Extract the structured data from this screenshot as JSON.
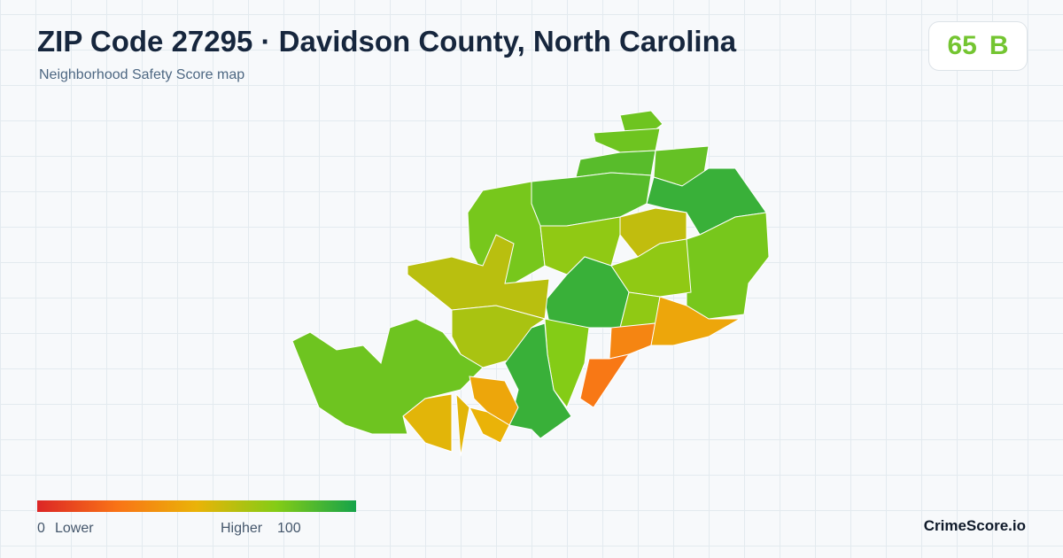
{
  "header": {
    "title": "ZIP Code 27295 · Davidson County, North Carolina",
    "subtitle": "Neighborhood Safety Score map",
    "score": 65,
    "grade": "B"
  },
  "legend": {
    "min": 0,
    "low_label": "Lower",
    "high_label": "Higher",
    "max": 100
  },
  "footer": {
    "brand": "CrimeScore.io"
  },
  "regions": [
    {
      "score": 80
    },
    {
      "score": 80
    },
    {
      "score": 85
    },
    {
      "score": 82
    },
    {
      "score": 92
    },
    {
      "score": 60
    },
    {
      "score": 78
    },
    {
      "score": 72
    },
    {
      "score": 85
    },
    {
      "score": 78
    },
    {
      "score": 72
    },
    {
      "score": 92
    },
    {
      "score": 62
    },
    {
      "score": 66
    },
    {
      "score": 75
    },
    {
      "score": 92
    },
    {
      "score": 72
    },
    {
      "score": 32
    },
    {
      "score": 27
    },
    {
      "score": 45
    },
    {
      "score": 80
    },
    {
      "score": 45
    },
    {
      "score": 52
    },
    {
      "score": 52
    },
    {
      "score": 50
    }
  ]
}
